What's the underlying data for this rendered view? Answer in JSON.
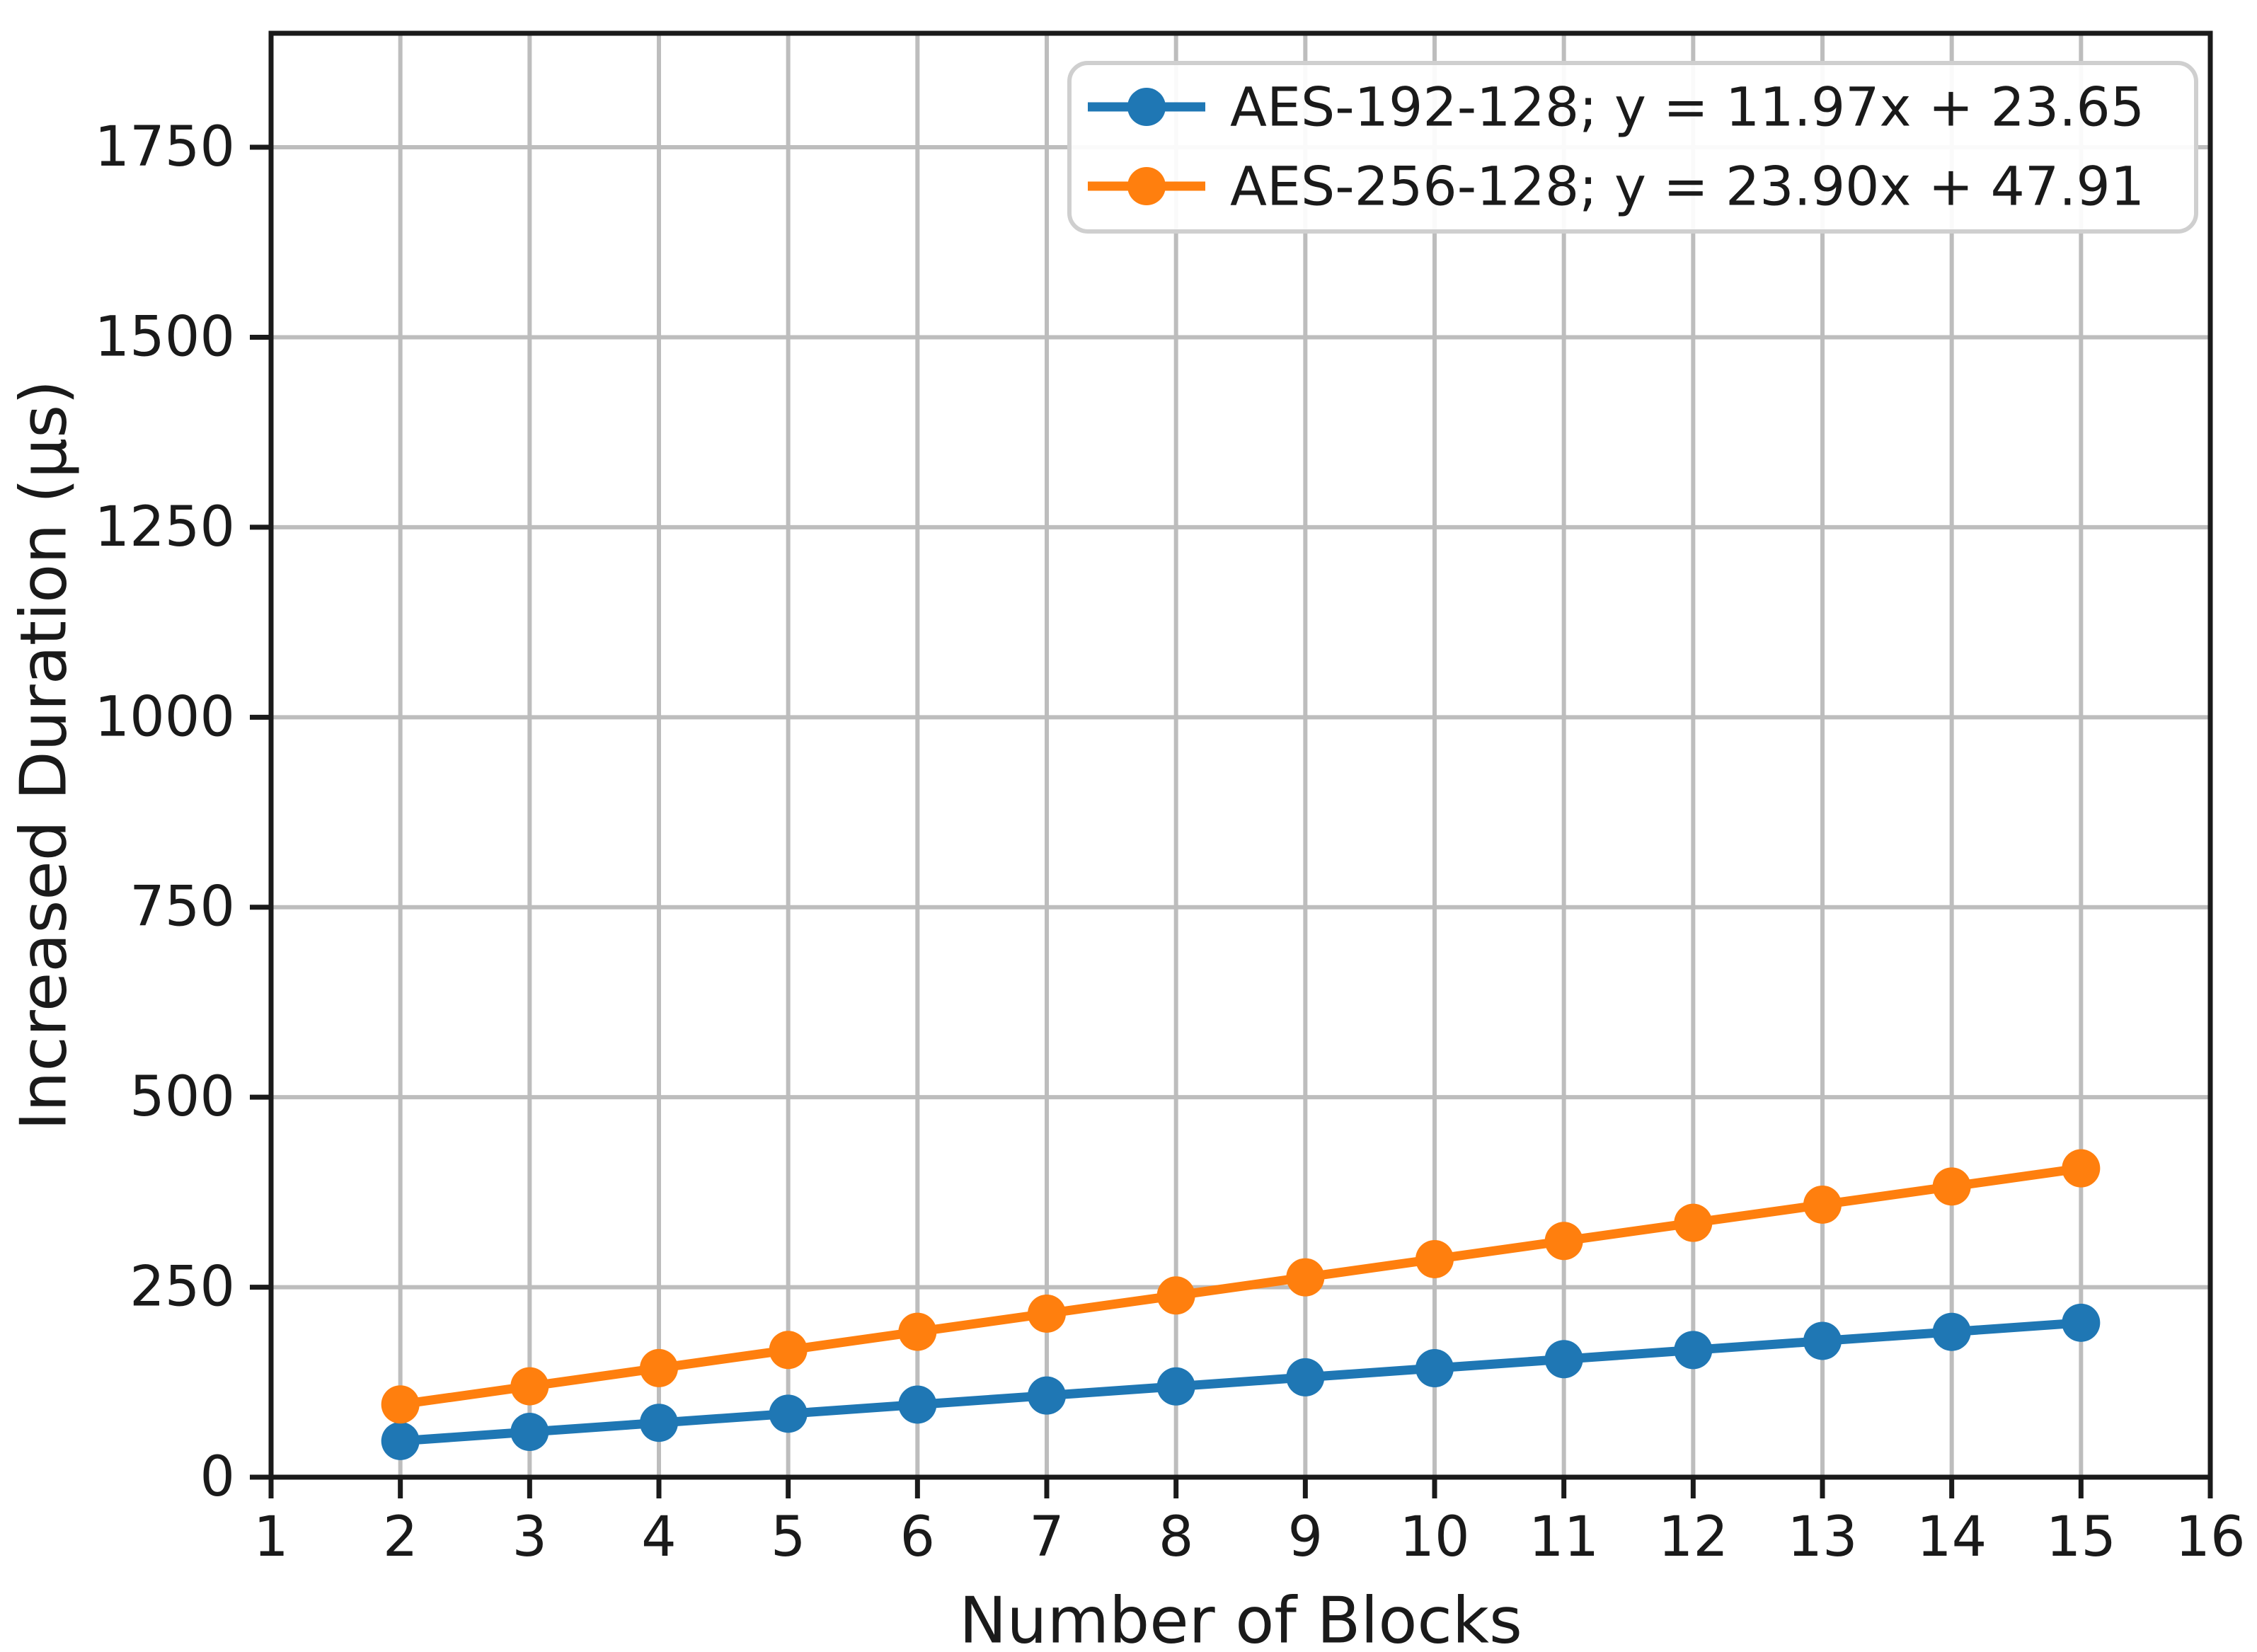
{
  "figure": {
    "background_color": "#ffffff",
    "text_color": "#1a1a1a",
    "spine_color": "#1a1a1a",
    "grid_color": "#bdbdbd",
    "legend": {
      "background_color": "#ffffff",
      "border_color": "#cfcfcf",
      "position": "upper right"
    }
  },
  "chart_data": {
    "type": "line",
    "title": "",
    "xlabel": "Number of Blocks",
    "ylabel": "Increased Duration (μs)",
    "xlim": [
      1,
      16
    ],
    "ylim": [
      0,
      1900
    ],
    "xticks": [
      1,
      2,
      3,
      4,
      5,
      6,
      7,
      8,
      9,
      10,
      11,
      12,
      13,
      14,
      15,
      16
    ],
    "yticks": [
      0,
      250,
      500,
      750,
      1000,
      1250,
      1500,
      1750
    ],
    "grid": true,
    "legend_position": "upper right",
    "x": [
      2,
      3,
      4,
      5,
      6,
      7,
      8,
      9,
      10,
      11,
      12,
      13,
      14,
      15
    ],
    "series": [
      {
        "name": "AES-192-128",
        "legend_label": "AES-192-128; y = 11.97x + 23.65",
        "color": "#1f77b4",
        "fit_slope": 11.97,
        "fit_intercept": 23.65,
        "values": [
          47.6,
          59.6,
          71.5,
          83.5,
          95.5,
          107.4,
          119.4,
          131.4,
          143.4,
          155.3,
          167.3,
          179.3,
          191.2,
          203.2
        ]
      },
      {
        "name": "AES-256-128",
        "legend_label": "AES-256-128; y = 23.90x + 47.91",
        "color": "#ff7f0e",
        "fit_slope": 23.9,
        "fit_intercept": 47.91,
        "values": [
          95.7,
          119.6,
          143.5,
          167.4,
          191.3,
          215.2,
          239.1,
          263.0,
          286.9,
          310.8,
          334.7,
          358.6,
          382.5,
          406.4
        ]
      }
    ]
  }
}
